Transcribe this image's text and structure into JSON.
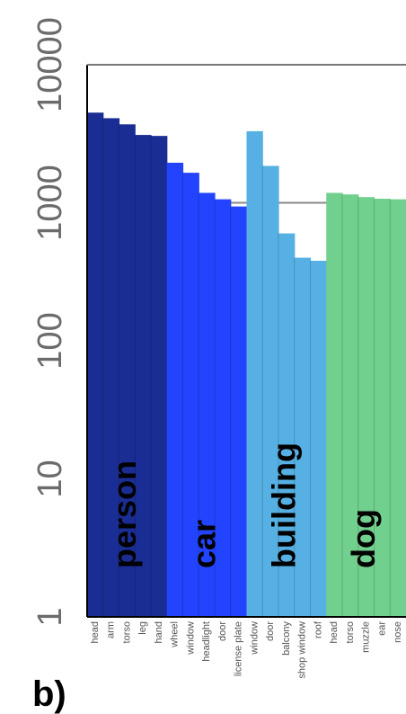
{
  "panel_label": "b)",
  "chart_data": {
    "type": "bar",
    "yscale": "log",
    "ylim": [
      1,
      10000
    ],
    "ytick_labels": [
      "1",
      "10",
      "100",
      "1000",
      "10000"
    ],
    "xlabel": "",
    "ylabel": "",
    "grid": "horizontal",
    "groups": [
      {
        "name": "person",
        "color": "#1a2d94",
        "categories": [
          "head",
          "arm",
          "torso",
          "leg",
          "hand"
        ],
        "values": [
          4500,
          4100,
          3700,
          3100,
          3050
        ]
      },
      {
        "name": "car",
        "color": "#2244ff",
        "categories": [
          "wheel",
          "window",
          "headlight",
          "door",
          "license plate"
        ],
        "values": [
          1950,
          1650,
          1180,
          1060,
          940
        ]
      },
      {
        "name": "building",
        "color": "#57b0e3",
        "categories": [
          "window",
          "door",
          "balcony",
          "shop window",
          "roof"
        ],
        "values": [
          3300,
          1850,
          600,
          400,
          380
        ]
      },
      {
        "name": "dog",
        "color": "#72d08e",
        "categories": [
          "head",
          "torso",
          "muzzle",
          "ear",
          "nose"
        ],
        "values": [
          1180,
          1150,
          1100,
          1070,
          1060
        ]
      }
    ]
  }
}
